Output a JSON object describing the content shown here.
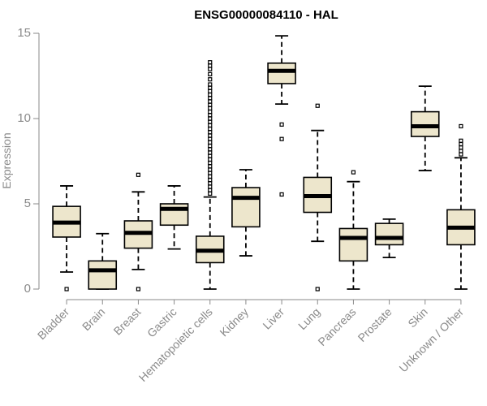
{
  "chart_data": {
    "type": "boxplot",
    "title": "ENSG00000084110 - HAL",
    "xlabel": "",
    "ylabel": "Expression",
    "ylim": [
      0,
      15
    ],
    "yticks": [
      0,
      5,
      10,
      15
    ],
    "grid": false,
    "colors": {
      "box_fill": "#ede6cc",
      "median": "#000000",
      "axis": "#8a8a8a"
    },
    "categories": [
      "Bladder",
      "Brain",
      "Breast",
      "Gastric",
      "Hematopoietic cells",
      "Kidney",
      "Liver",
      "Lung",
      "Pancreas",
      "Prostate",
      "Skin",
      "Unknown / Other"
    ],
    "series": [
      {
        "min": 1.0,
        "q1": 3.05,
        "median": 3.9,
        "q3": 4.85,
        "max": 6.05,
        "outliers": [
          0.0
        ]
      },
      {
        "min": 0.0,
        "q1": 0.0,
        "median": 1.1,
        "q3": 1.65,
        "max": 3.25,
        "outliers": []
      },
      {
        "min": 1.15,
        "q1": 2.4,
        "median": 3.3,
        "q3": 4.0,
        "max": 5.7,
        "outliers": [
          0.0,
          6.7
        ]
      },
      {
        "min": 2.35,
        "q1": 3.75,
        "median": 4.7,
        "q3": 5.0,
        "max": 6.05,
        "outliers": []
      },
      {
        "min": 0.0,
        "q1": 1.55,
        "median": 2.25,
        "q3": 3.1,
        "max": 5.4,
        "outliers": [
          5.6,
          5.8,
          6.0,
          6.2,
          6.4,
          6.6,
          6.8,
          7.0,
          7.2,
          7.4,
          7.6,
          7.8,
          8.0,
          8.2,
          8.4,
          8.6,
          8.8,
          9.0,
          9.2,
          9.4,
          9.6,
          9.8,
          10.0,
          10.2,
          10.4,
          10.6,
          10.8,
          11.0,
          11.2,
          11.4,
          11.6,
          11.8,
          12.0,
          12.3,
          12.6,
          12.9,
          13.1,
          13.3
        ]
      },
      {
        "min": 1.95,
        "q1": 3.65,
        "median": 5.35,
        "q3": 5.95,
        "max": 7.0,
        "outliers": []
      },
      {
        "min": 10.85,
        "q1": 12.05,
        "median": 12.8,
        "q3": 13.25,
        "max": 14.85,
        "outliers": [
          5.55,
          8.8,
          9.65
        ]
      },
      {
        "min": 2.8,
        "q1": 4.5,
        "median": 5.45,
        "q3": 6.55,
        "max": 9.3,
        "outliers": [
          0.0,
          10.75
        ]
      },
      {
        "min": 0.0,
        "q1": 1.65,
        "median": 3.0,
        "q3": 3.55,
        "max": 6.3,
        "outliers": [
          6.85
        ]
      },
      {
        "min": 1.85,
        "q1": 2.6,
        "median": 3.0,
        "q3": 3.85,
        "max": 4.1,
        "outliers": []
      },
      {
        "min": 6.95,
        "q1": 8.95,
        "median": 9.55,
        "q3": 10.4,
        "max": 11.9,
        "outliers": []
      },
      {
        "min": 0.0,
        "q1": 2.6,
        "median": 3.6,
        "q3": 4.65,
        "max": 7.7,
        "outliers": [
          7.9,
          8.1,
          8.3,
          8.5,
          8.7,
          9.55
        ]
      }
    ]
  }
}
